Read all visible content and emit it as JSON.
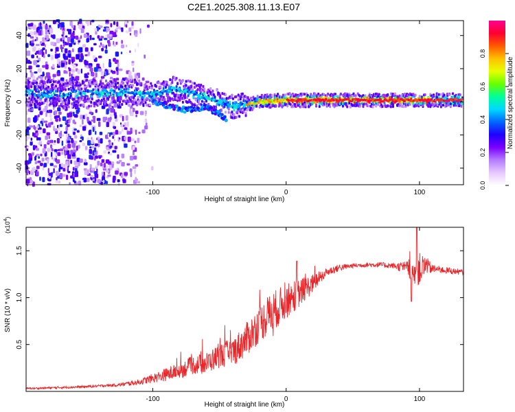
{
  "title": "C2E1.2025.308.11.13.E07",
  "chart_data": [
    {
      "type": "heatmap",
      "name": "spectrogram",
      "xlabel": "Height of straight line (km)",
      "ylabel": "Frequency (Hz)",
      "xlim": [
        -195,
        133
      ],
      "ylim": [
        -50,
        49
      ],
      "xticks": [
        -100,
        0,
        100
      ],
      "xtick_labels": [
        "-100",
        "0",
        "100"
      ],
      "yticks": [
        -40,
        -20,
        0,
        20,
        40
      ],
      "ytick_labels": [
        "-40",
        "-20",
        "0",
        "20",
        "40"
      ],
      "colorbar": {
        "label": "Normalized spectral amplitude",
        "range": [
          0,
          1
        ],
        "ticks": [
          0.0,
          0.2,
          0.4,
          0.6,
          0.8
        ],
        "tick_labels": [
          "0.0",
          "0.2",
          "0.4",
          "0.6",
          "0.8"
        ],
        "colors": [
          "#ffffff",
          "#e6c8ff",
          "#b47cff",
          "#7a00ff",
          "#1f00ff",
          "#0066ff",
          "#00d8ff",
          "#00ff9a",
          "#66ff00",
          "#e6ff00",
          "#ffc000",
          "#ff5a00",
          "#ff0030",
          "#ff0090"
        ]
      },
      "ridge": {
        "description_points": [
          {
            "x": -160,
            "y": 5
          },
          {
            "x": -120,
            "y": 6
          },
          {
            "x": -100,
            "y": 4
          },
          {
            "x": -85,
            "y": 8
          },
          {
            "x": -70,
            "y": 5
          },
          {
            "x": -50,
            "y": 0
          },
          {
            "x": -40,
            "y": -3
          },
          {
            "x": -20,
            "y": 0
          },
          {
            "x": 0,
            "y": 1
          },
          {
            "x": 50,
            "y": 1
          },
          {
            "x": 100,
            "y": 1
          },
          {
            "x": 133,
            "y": 1
          }
        ],
        "lower_branch": [
          {
            "x": -100,
            "y": 0
          },
          {
            "x": -85,
            "y": -3
          },
          {
            "x": -75,
            "y": -5
          },
          {
            "x": -60,
            "y": -3
          },
          {
            "x": -45,
            "y": -10
          }
        ],
        "strong_segment_x": [
          0,
          100
        ]
      }
    },
    {
      "type": "line",
      "name": "snr",
      "xlabel": "Height of straight line (km)",
      "ylabel": "SNR (10 * v/v)",
      "multiplier_label": "(x10",
      "multiplier_exp": "4",
      "multiplier_close": ")",
      "xlim": [
        -195,
        133
      ],
      "ylim": [
        0,
        1.75
      ],
      "xticks": [
        -100,
        0,
        100
      ],
      "xtick_labels": [
        "-100",
        "0",
        "100"
      ],
      "yticks": [
        0.5,
        1.0,
        1.5
      ],
      "ytick_labels": [
        "0.5",
        "1.0",
        "1.5"
      ],
      "line_color": "#e8262a",
      "series": [
        {
          "name": "SNR",
          "trend": {
            "x": [
              -195,
              -150,
              -125,
              -110,
              -95,
              -80,
              -70,
              -60,
              -50,
              -40,
              -30,
              -20,
              -10,
              0,
              10,
              20,
              30,
              40,
              50,
              60,
              70,
              80,
              90,
              95,
              100,
              105,
              110,
              120,
              133
            ],
            "y": [
              0.03,
              0.05,
              0.07,
              0.1,
              0.16,
              0.22,
              0.28,
              0.3,
              0.38,
              0.42,
              0.55,
              0.72,
              0.85,
              0.96,
              1.05,
              1.15,
              1.27,
              1.32,
              1.34,
              1.35,
              1.35,
              1.34,
              1.32,
              1.28,
              1.3,
              1.33,
              1.31,
              1.29,
              1.27
            ]
          },
          "noise": {
            "x": [
              -195,
              -130,
              -110,
              -90,
              -70,
              -50,
              -30,
              -10,
              10,
              30,
              50,
              80,
              90,
              100,
              110,
              133
            ],
            "amp": [
              0.01,
              0.015,
              0.03,
              0.07,
              0.1,
              0.13,
              0.18,
              0.22,
              0.15,
              0.05,
              0.025,
              0.03,
              0.07,
              0.18,
              0.04,
              0.03
            ]
          },
          "peaks": [
            {
              "x": 8,
              "y": 1.39
            },
            {
              "x": 98,
              "y": 1.75
            },
            {
              "x": 94,
              "y": 0.96
            }
          ]
        }
      ]
    }
  ]
}
